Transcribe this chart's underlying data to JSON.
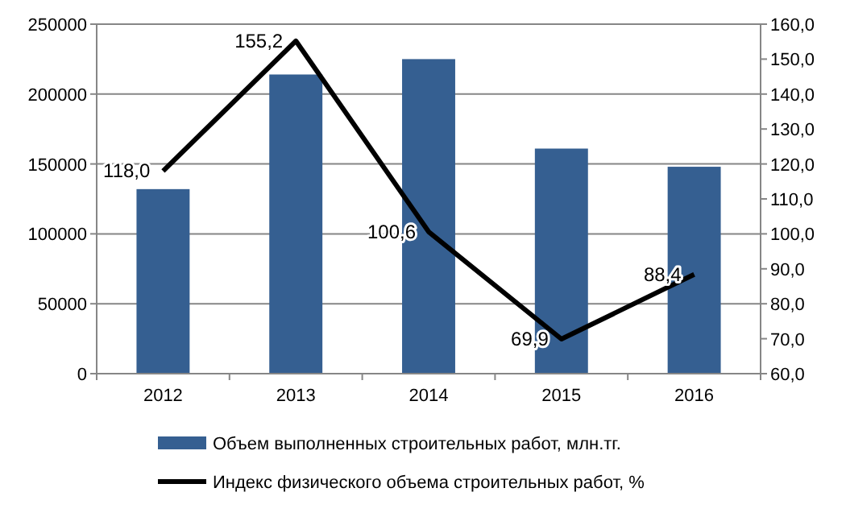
{
  "chart_data": {
    "type": "bar",
    "categories": [
      "2012",
      "2013",
      "2014",
      "2015",
      "2016"
    ],
    "series": [
      {
        "name": "Объем выполненных строительных работ, млн.тг.",
        "color": "#355f91",
        "values": [
          132000,
          214000,
          225000,
          161000,
          148000
        ]
      },
      {
        "name": "Индекс физического объема строительных работ, %",
        "type": "line",
        "axis": "y2",
        "color": "#000000",
        "values": [
          118.0,
          155.2,
          100.6,
          69.9,
          88.4
        ],
        "value_labels": [
          "118,0",
          "155,2",
          "100,6",
          "69,9",
          "88,4"
        ]
      }
    ],
    "ylim": [
      0,
      250000
    ],
    "yticks": [
      0,
      50000,
      100000,
      150000,
      200000,
      250000
    ],
    "y2lim": [
      60,
      160
    ],
    "y2ticks": [
      {
        "value": 60,
        "label": "60,0"
      },
      {
        "value": 70,
        "label": "70,0"
      },
      {
        "value": 80,
        "label": "80,0"
      },
      {
        "value": 90,
        "label": "90,0"
      },
      {
        "value": 100,
        "label": "100,0"
      },
      {
        "value": 110,
        "label": "110,0"
      },
      {
        "value": 120,
        "label": "120,0"
      },
      {
        "value": 130,
        "label": "130,0"
      },
      {
        "value": 140,
        "label": "140,0"
      },
      {
        "value": 150,
        "label": "150,0"
      },
      {
        "value": 160,
        "label": "160,0"
      }
    ],
    "grid": "y",
    "legend": "bottom",
    "marker": "none",
    "line_style": "solid"
  }
}
